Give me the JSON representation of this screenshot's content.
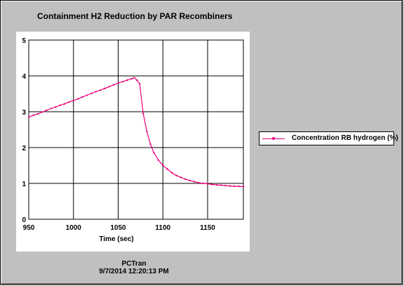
{
  "title": "Containment H2 Reduction by PAR Recombiners",
  "footer": {
    "source": "PCTran",
    "timestamp": "9/7/2014 12:20:13 PM"
  },
  "colors": {
    "series": "#e8007a",
    "grid": "#000000",
    "background": "#c0c0c0"
  },
  "chart_data": {
    "type": "line",
    "title": "Containment H2 Reduction by PAR Recombiners",
    "xlabel": "Time (sec)",
    "ylabel": "",
    "xlim": [
      950,
      1190
    ],
    "ylim": [
      0,
      5
    ],
    "x_ticks": [
      950,
      1000,
      1050,
      1100,
      1150
    ],
    "y_ticks": [
      0,
      1,
      2,
      3,
      4,
      5
    ],
    "grid": true,
    "legend_position": "right",
    "series": [
      {
        "name": "Concentration RB hydrogen (%)",
        "color": "#e8007a",
        "x": [
          950,
          955,
          960,
          965,
          970,
          975,
          980,
          985,
          990,
          995,
          1000,
          1005,
          1010,
          1015,
          1020,
          1025,
          1030,
          1035,
          1040,
          1045,
          1050,
          1055,
          1060,
          1065,
          1068,
          1071,
          1074,
          1078,
          1082,
          1086,
          1090,
          1095,
          1100,
          1105,
          1110,
          1115,
          1120,
          1125,
          1130,
          1135,
          1140,
          1145,
          1150,
          1155,
          1160,
          1165,
          1170,
          1175,
          1180,
          1185,
          1190
        ],
        "y": [
          2.85,
          2.9,
          2.94,
          2.99,
          3.04,
          3.09,
          3.13,
          3.18,
          3.22,
          3.27,
          3.31,
          3.36,
          3.41,
          3.46,
          3.51,
          3.56,
          3.6,
          3.65,
          3.7,
          3.75,
          3.8,
          3.84,
          3.88,
          3.92,
          3.95,
          3.88,
          3.78,
          2.95,
          2.45,
          2.1,
          1.85,
          1.65,
          1.5,
          1.4,
          1.3,
          1.22,
          1.17,
          1.12,
          1.08,
          1.05,
          1.02,
          1.0,
          0.99,
          0.97,
          0.96,
          0.95,
          0.94,
          0.93,
          0.92,
          0.92,
          0.91
        ]
      }
    ]
  }
}
